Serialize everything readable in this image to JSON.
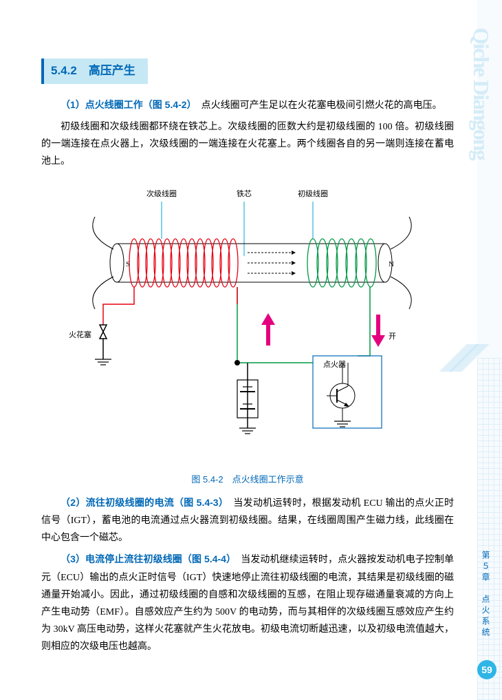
{
  "section": {
    "number": "5.4.2",
    "title": "高压产生"
  },
  "p1": {
    "label": "（1）点火线圈工作（图 5.4-2）",
    "text1": "点火线圈可产生足以在火花塞电极间引燃火花的高电压。",
    "text2": "初级线圈和次级线圈都环绕在铁芯上。次级线圈的匝数大约是初级线圈的 100 倍。初级线圈的一端连接在点火器上，次级线圈的一端连接在火花塞上。两个线圈各自的另一端则连接在蓄电池上。"
  },
  "figure": {
    "caption": "图 5.4-2　点火线圈工作示意",
    "labels": {
      "secondary": "次级线圈",
      "core": "铁芯",
      "primary": "初级线圈",
      "spark": "火花塞",
      "igniter": "点火器",
      "switch": "开",
      "s": "S",
      "n": "N"
    },
    "colors": {
      "label_line": "#00a3d6",
      "coil_outline": "#e60012",
      "coil_secondary": "#009944",
      "wire": "#009944",
      "arrow": "#e5007f",
      "box": "#0068b7",
      "ground": "#000000"
    }
  },
  "p2": {
    "label": "（2）流往初级线圈的电流（图 5.4-3）",
    "text": "当发动机运转时，根据发动机 ECU 输出的点火正时信号（IGT），蓄电池的电流通过点火器流到初级线圈。结果，在线圈周围产生磁力线，此线圈在中心包含一个磁芯。"
  },
  "p3": {
    "label": "（3）电流停止流往初级线圈（图 5.4-4）",
    "text": "当发动机继续运转时，点火器按发动机电子控制单元（ECU）输出的点火正时信号（IGT）快速地停止流往初级线圈的电流，其结果是初级线圈的磁通量开始减小。因此，通过初级线圈的自感和次级线圈的互感，在阻止现存磁通量衰减的方向上产生电动势（EMF）。自感效应产生约为 500V 的电动势，而与其相伴的次级线圈互感效应产生约为 30kV 高压电动势，这样火花塞就产生火花放电。初级电流切断越迅速，以及初级电流值越大，则相应的次级电压也越高。"
  },
  "sidebar": {
    "watermark": "Qiche Diangong",
    "chapter": "第５章　点火系统",
    "page": "59"
  }
}
